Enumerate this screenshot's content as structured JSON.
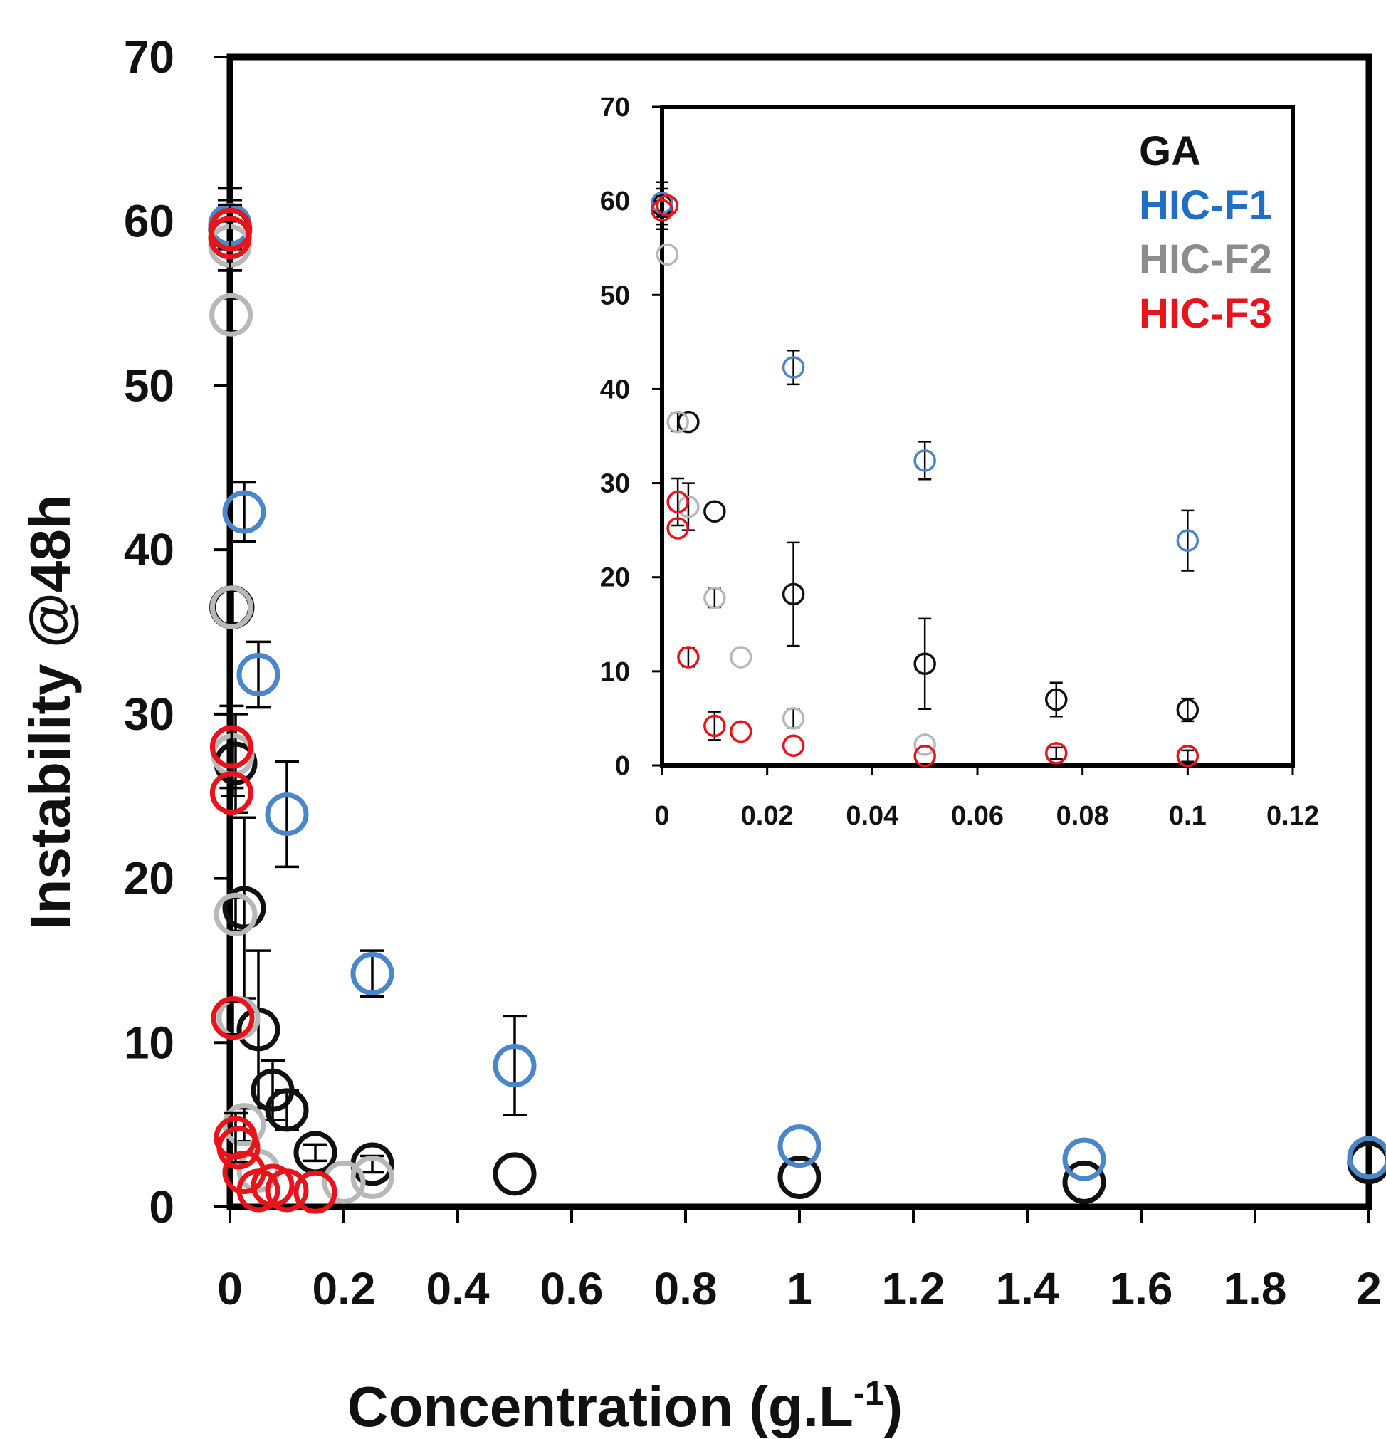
{
  "chart_data": [
    {
      "type": "scatter",
      "panel": "main",
      "xlabel": "Concentration (g.L",
      "xlabel_superscript": "-1",
      "xlabel_suffix": ")",
      "ylabel": "Instability @48h",
      "xlim": [
        0,
        2
      ],
      "ylim": [
        0,
        70
      ],
      "x_ticks": [
        "0",
        "0.2",
        "0.4",
        "0.6",
        "0.8",
        "1",
        "1.2",
        "1.4",
        "1.6",
        "1.8",
        "2"
      ],
      "y_ticks": [
        "0",
        "10",
        "20",
        "30",
        "40",
        "50",
        "60",
        "70"
      ],
      "grid": false,
      "series": [
        {
          "name": "GA",
          "color": "#111111",
          "points": [
            {
              "x": 0,
              "y": 59.5,
              "err": 2.5
            },
            {
              "x": 0.002,
              "y": 36.5,
              "err": 1
            },
            {
              "x": 0.005,
              "y": 36.5,
              "err": 1
            },
            {
              "x": 0.01,
              "y": 27,
              "err": 3
            },
            {
              "x": 0.025,
              "y": 18.2,
              "err": 5.5
            },
            {
              "x": 0.05,
              "y": 10.8,
              "err": 4.8
            },
            {
              "x": 0.075,
              "y": 7.1,
              "err": 1.8
            },
            {
              "x": 0.1,
              "y": 5.9,
              "err": 1.2
            },
            {
              "x": 0.15,
              "y": 3.3,
              "err": 0.5
            },
            {
              "x": 0.25,
              "y": 2.6,
              "err": 0.5
            },
            {
              "x": 0.5,
              "y": 2,
              "err": 0
            },
            {
              "x": 1,
              "y": 1.8,
              "err": 0
            },
            {
              "x": 1.5,
              "y": 1.5,
              "err": 0
            },
            {
              "x": 2,
              "y": 2.7,
              "err": 0
            }
          ]
        },
        {
          "name": "HIC-F1",
          "color": "#4a86c8",
          "points": [
            {
              "x": 0,
              "y": 59.8,
              "err": 1.5
            },
            {
              "x": 0.025,
              "y": 42.3,
              "err": 1.8
            },
            {
              "x": 0.05,
              "y": 32.4,
              "err": 2
            },
            {
              "x": 0.1,
              "y": 23.9,
              "err": 3.2
            },
            {
              "x": 0.25,
              "y": 14.2,
              "err": 1.4
            },
            {
              "x": 0.5,
              "y": 8.6,
              "err": 3
            },
            {
              "x": 1,
              "y": 3.7,
              "err": 0
            },
            {
              "x": 1.5,
              "y": 2.9,
              "err": 0
            },
            {
              "x": 2,
              "y": 3,
              "err": 0
            }
          ]
        },
        {
          "name": "HIC-F2",
          "color": "#b8b8b8",
          "points": [
            {
              "x": 0,
              "y": 58.5,
              "err": 1.5
            },
            {
              "x": 0.002,
              "y": 54.3,
              "err": 1
            },
            {
              "x": 0.003,
              "y": 36.5,
              "err": 1
            },
            {
              "x": 0.005,
              "y": 27.5,
              "err": 2.5
            },
            {
              "x": 0.01,
              "y": 17.8,
              "err": 1
            },
            {
              "x": 0.015,
              "y": 11.5,
              "err": 0
            },
            {
              "x": 0.025,
              "y": 5,
              "err": 1
            },
            {
              "x": 0.05,
              "y": 2.2,
              "err": 0
            },
            {
              "x": 0.2,
              "y": 1.5,
              "err": 0
            },
            {
              "x": 0.25,
              "y": 1.8,
              "err": 0
            }
          ]
        },
        {
          "name": "HIC-F3",
          "color": "#e8141c",
          "points": [
            {
              "x": 0,
              "y": 59,
              "err": 2
            },
            {
              "x": 0.001,
              "y": 59.5,
              "err": 0
            },
            {
              "x": 0.003,
              "y": 28,
              "err": 2.5
            },
            {
              "x": 0.003,
              "y": 25.2,
              "err": 0
            },
            {
              "x": 0.005,
              "y": 11.5,
              "err": 1
            },
            {
              "x": 0.01,
              "y": 4.2,
              "err": 1.5
            },
            {
              "x": 0.015,
              "y": 3.6,
              "err": 0
            },
            {
              "x": 0.025,
              "y": 2.1,
              "err": 0
            },
            {
              "x": 0.05,
              "y": 1,
              "err": 0
            },
            {
              "x": 0.075,
              "y": 1.3,
              "err": 0
            },
            {
              "x": 0.1,
              "y": 1,
              "err": 0
            },
            {
              "x": 0.15,
              "y": 0.9,
              "err": 0
            }
          ]
        }
      ]
    },
    {
      "type": "scatter",
      "panel": "inset",
      "xlim": [
        0,
        0.12
      ],
      "ylim": [
        0,
        70
      ],
      "x_ticks": [
        "0",
        "0.02",
        "0.04",
        "0.06",
        "0.08",
        "0.1",
        "0.12"
      ],
      "y_ticks": [
        "0",
        "10",
        "20",
        "30",
        "40",
        "50",
        "60",
        "70"
      ],
      "grid": false,
      "legend": {
        "position": "top-right",
        "entries": [
          "GA",
          "HIC-F1",
          "HIC-F2",
          "HIC-F3"
        ]
      },
      "series": [
        {
          "name": "GA",
          "color": "#111111",
          "points": [
            {
              "x": 0,
              "y": 59.5,
              "err": 2.5
            },
            {
              "x": 0.005,
              "y": 36.5,
              "err": 0
            },
            {
              "x": 0.01,
              "y": 27,
              "err": 0
            },
            {
              "x": 0.025,
              "y": 18.2,
              "err": 5.5
            },
            {
              "x": 0.05,
              "y": 10.8,
              "err": 4.8
            },
            {
              "x": 0.075,
              "y": 7,
              "err": 1.8
            },
            {
              "x": 0.1,
              "y": 5.9,
              "err": 1.2
            }
          ]
        },
        {
          "name": "HIC-F1",
          "color": "#4a86c8",
          "points": [
            {
              "x": 0,
              "y": 59.8,
              "err": 1.5
            },
            {
              "x": 0.025,
              "y": 42.3,
              "err": 1.8
            },
            {
              "x": 0.05,
              "y": 32.4,
              "err": 2
            },
            {
              "x": 0.1,
              "y": 23.9,
              "err": 3.2
            }
          ]
        },
        {
          "name": "HIC-F2",
          "color": "#b8b8b8",
          "points": [
            {
              "x": 0.001,
              "y": 54.3,
              "err": 0
            },
            {
              "x": 0.003,
              "y": 36.5,
              "err": 1
            },
            {
              "x": 0.005,
              "y": 27.5,
              "err": 2.5
            },
            {
              "x": 0.01,
              "y": 17.8,
              "err": 1
            },
            {
              "x": 0.015,
              "y": 11.5,
              "err": 0
            },
            {
              "x": 0.025,
              "y": 5,
              "err": 1
            },
            {
              "x": 0.05,
              "y": 2.2,
              "err": 0
            }
          ]
        },
        {
          "name": "HIC-F3",
          "color": "#e8141c",
          "points": [
            {
              "x": 0,
              "y": 59,
              "err": 1.5
            },
            {
              "x": 0.001,
              "y": 59.5,
              "err": 0
            },
            {
              "x": 0.003,
              "y": 28,
              "err": 2.5
            },
            {
              "x": 0.003,
              "y": 25.2,
              "err": 0
            },
            {
              "x": 0.005,
              "y": 11.5,
              "err": 1
            },
            {
              "x": 0.01,
              "y": 4.2,
              "err": 1.5
            },
            {
              "x": 0.015,
              "y": 3.6,
              "err": 0
            },
            {
              "x": 0.025,
              "y": 2.1,
              "err": 0
            },
            {
              "x": 0.05,
              "y": 1,
              "err": 0
            },
            {
              "x": 0.075,
              "y": 1.3,
              "err": 0.6
            },
            {
              "x": 0.1,
              "y": 1,
              "err": 0.6
            }
          ]
        }
      ]
    }
  ]
}
